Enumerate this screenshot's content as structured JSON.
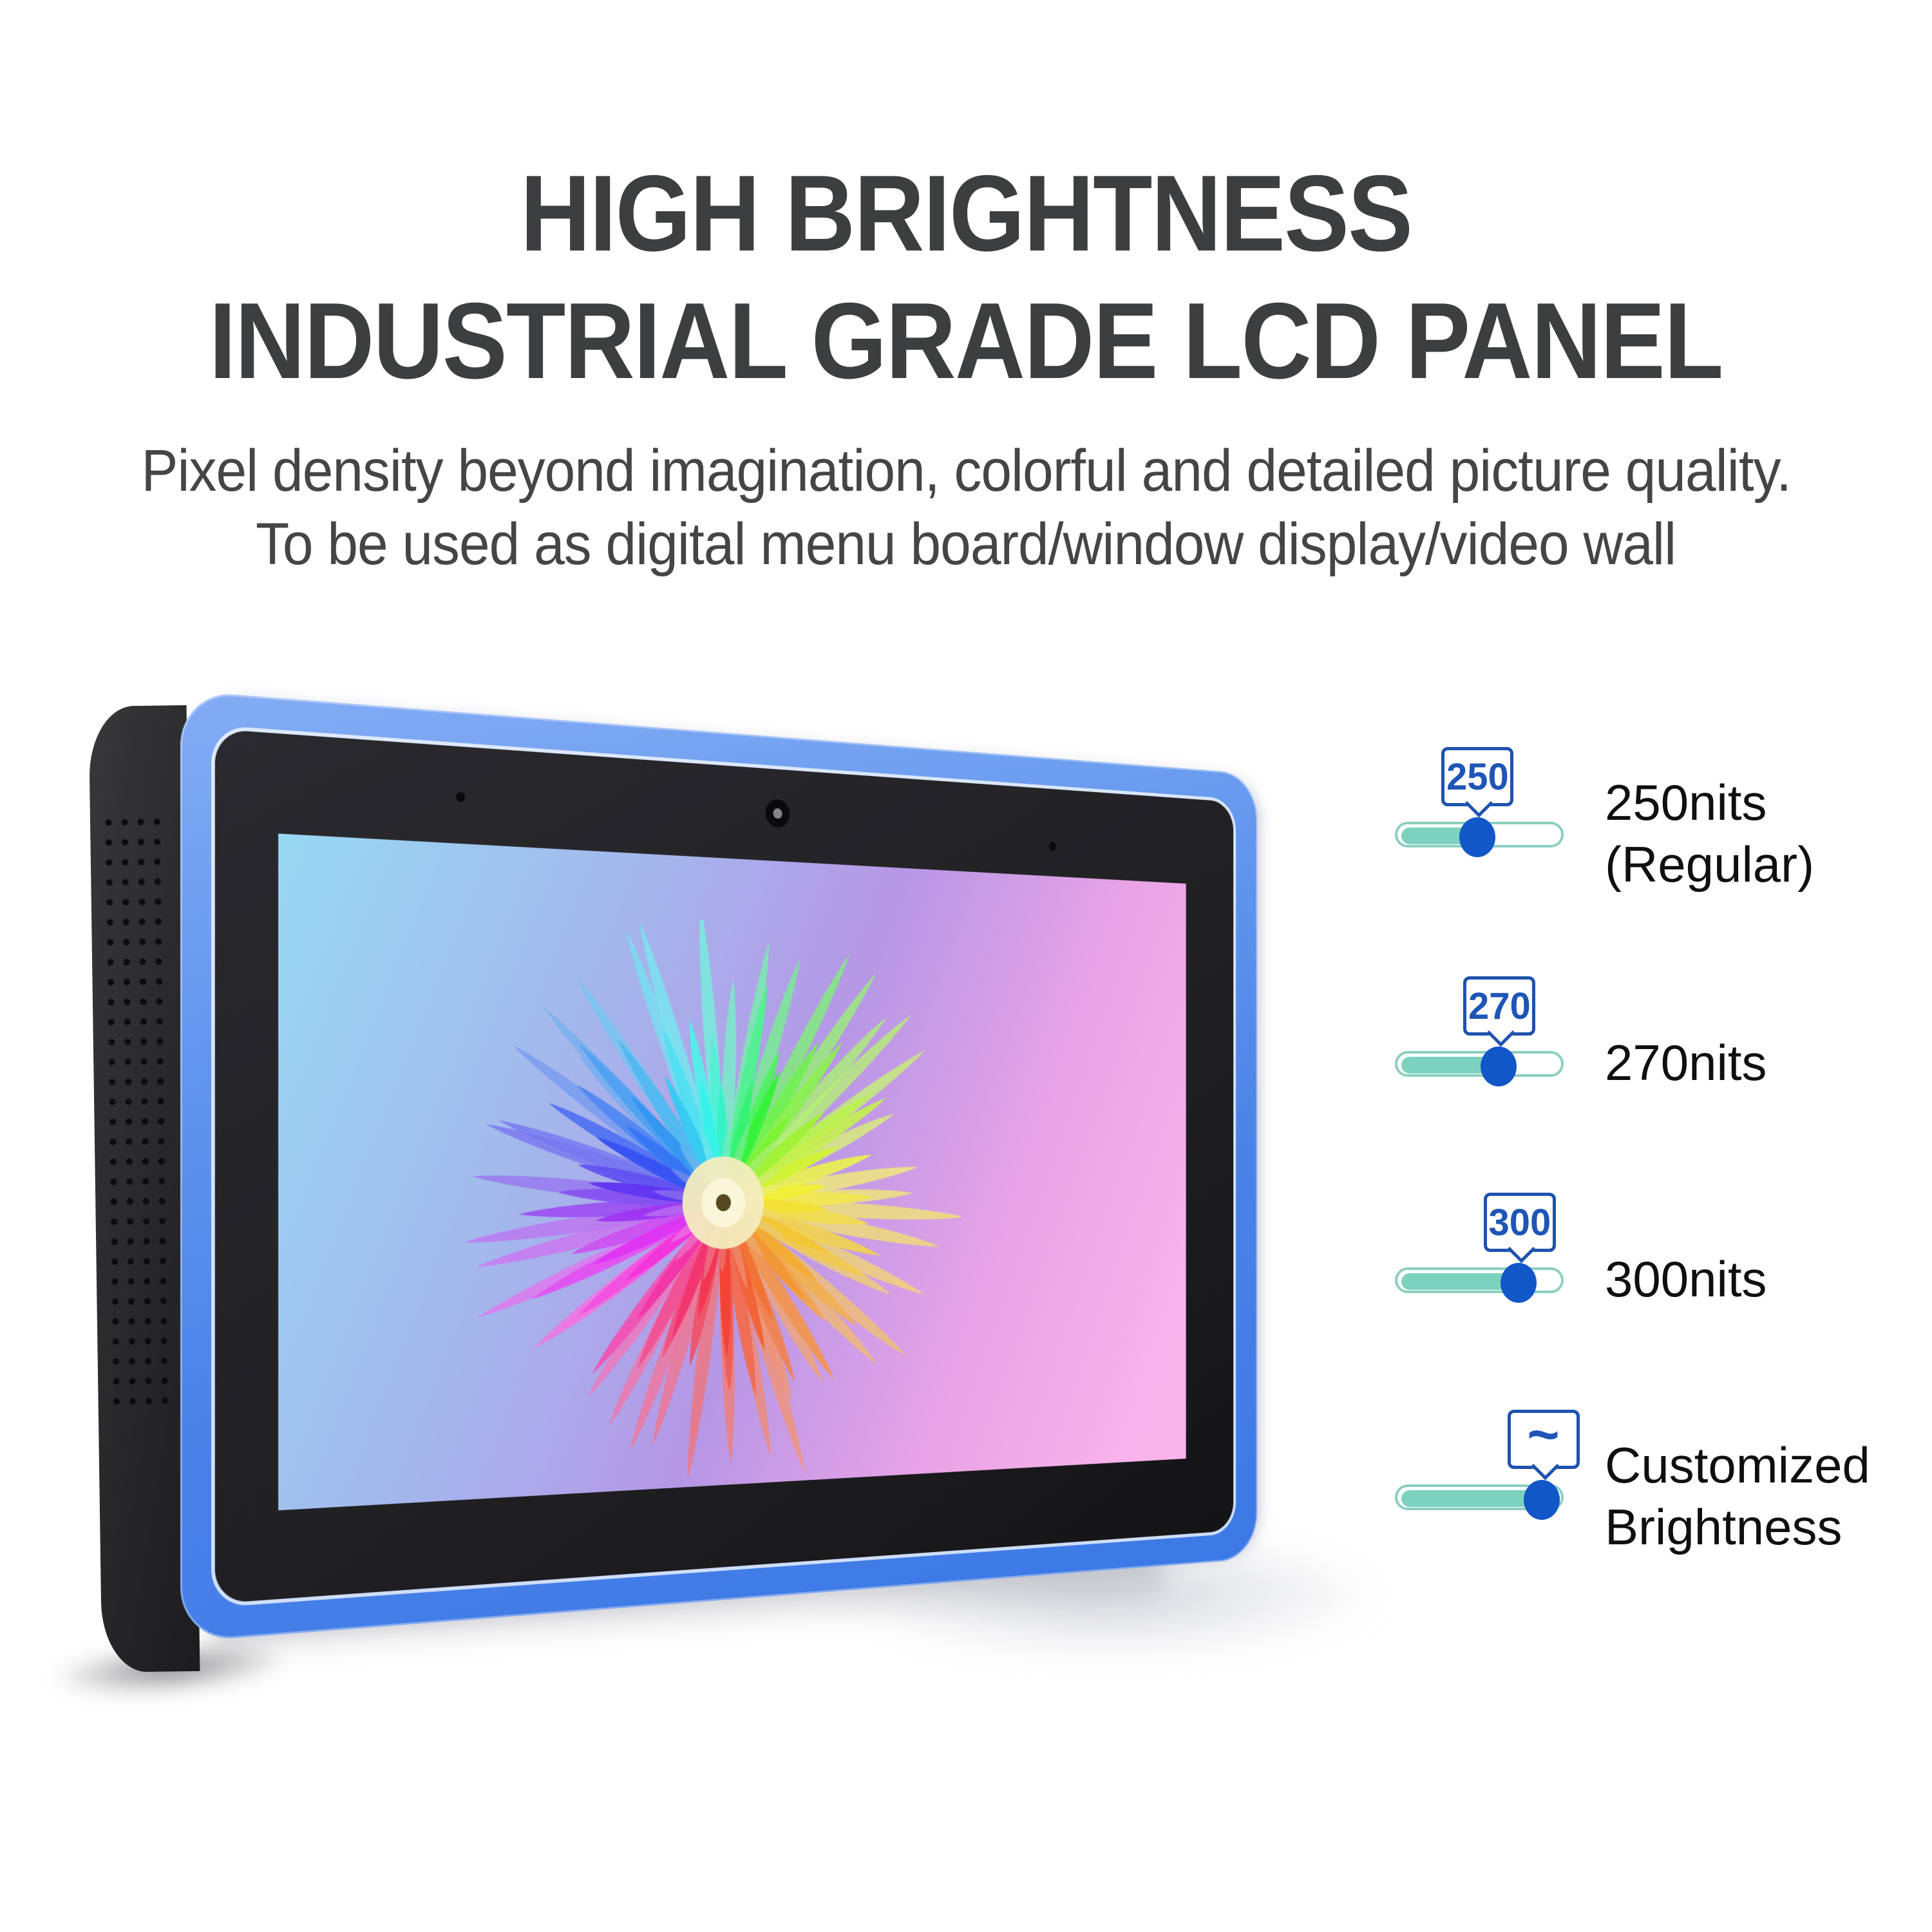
{
  "header": {
    "title_line1": "HIGH BRIGHTNESS",
    "title_line2": "INDUSTRIAL GRADE LCD PANEL",
    "subtitle_line1": "Pixel density beyond imagination, colorful and detailed picture quality.",
    "subtitle_line2": "To be used as digital menu board/window display/video wall"
  },
  "device": {
    "kind": "industrial LCD tablet panel",
    "wallpaper": "rainbow chrysanthemum flower on pastel gradient"
  },
  "brightness_options": [
    {
      "tooltip": "250",
      "label_line1": "250nits",
      "label_line2": "(Regular)",
      "value_percent": 49
    },
    {
      "tooltip": "270",
      "label_line1": "270nits",
      "label_line2": "",
      "value_percent": 62
    },
    {
      "tooltip": "300",
      "label_line1": "300nits",
      "label_line2": "",
      "value_percent": 74
    },
    {
      "tooltip": "~",
      "label_line1": "Customized",
      "label_line2": "Brightness",
      "value_percent": 88
    }
  ],
  "colors": {
    "title_text": "#3d3e40",
    "subtitle_text": "#454545",
    "label_text": "#0f0f10",
    "tooltip_border": "#1f52ad",
    "tooltip_text": "#1e55b6",
    "track_border": "#8bcfc0",
    "track_fill": "#7cd2be",
    "knob_blue": "#1157c8",
    "frame_blue": "#4a82e8"
  }
}
